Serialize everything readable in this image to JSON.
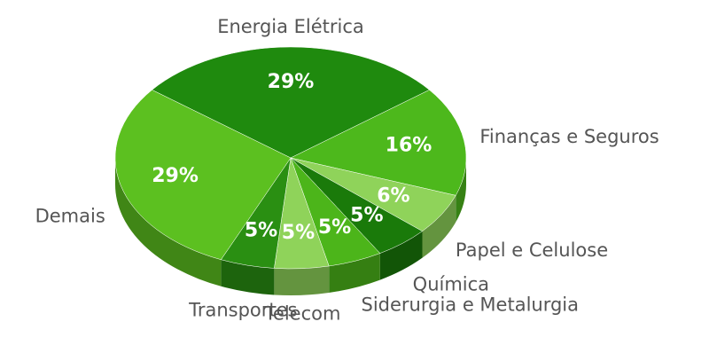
{
  "chart_data": {
    "type": "pie",
    "categories": [
      "Energia Elétrica",
      "Finanças e Seguros",
      "Papel e Celulose",
      "Química",
      "Siderurgia e Metalurgia",
      "Telecom",
      "Transportes",
      "Demais"
    ],
    "values": [
      29,
      16,
      6,
      5,
      5,
      5,
      5,
      29
    ],
    "value_labels": [
      "29%",
      "16%",
      "6%",
      "5%",
      "5%",
      "5%",
      "5%",
      "29%"
    ],
    "colors": [
      "#1f8a0e",
      "#4db81c",
      "#8fd35a",
      "#1a7a0a",
      "#4cb51a",
      "#8fd35a",
      "#2a8f12",
      "#5cc020"
    ]
  }
}
